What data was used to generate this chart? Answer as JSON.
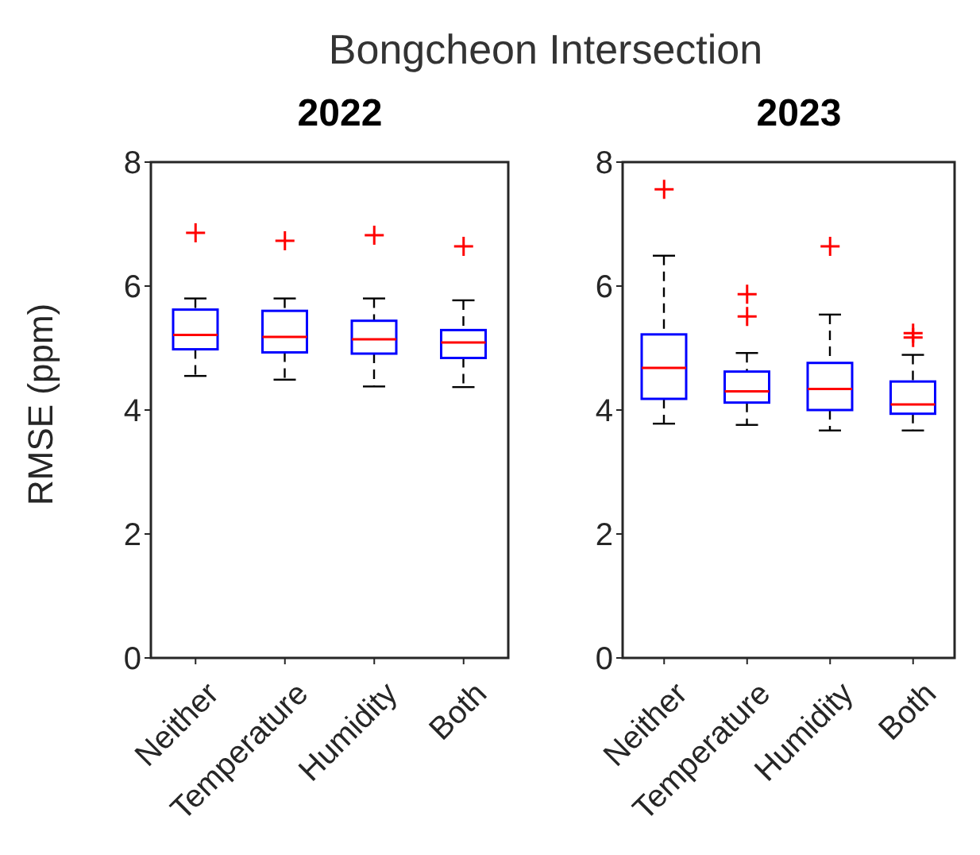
{
  "chart_data": [
    {
      "type": "box",
      "title": "Bongcheon Intersection",
      "subtitle": "2022",
      "ylabel": "RMSE (ppm)",
      "categories": [
        "Neither",
        "Temperature",
        "Humidity",
        "Both"
      ],
      "color": "#0000ff",
      "marker": "cross",
      "line_style": "dashed",
      "grid": false,
      "legend": false,
      "ylim": [
        0,
        8
      ],
      "yticks": [
        0,
        2,
        4,
        6,
        8
      ],
      "boxes": [
        {
          "low": 4.55,
          "q1": 4.98,
          "median": 5.21,
          "q3": 5.62,
          "high": 5.8,
          "outliers": [
            6.86
          ]
        },
        {
          "low": 4.49,
          "q1": 4.93,
          "median": 5.18,
          "q3": 5.6,
          "high": 5.8,
          "outliers": [
            6.73
          ]
        },
        {
          "low": 4.38,
          "q1": 4.91,
          "median": 5.14,
          "q3": 5.44,
          "high": 5.8,
          "outliers": [
            6.82
          ]
        },
        {
          "low": 4.37,
          "q1": 4.84,
          "median": 5.09,
          "q3": 5.29,
          "high": 5.77,
          "outliers": [
            6.64
          ]
        }
      ]
    },
    {
      "type": "box",
      "subtitle": "2023",
      "categories": [
        "Neither",
        "Temperature",
        "Humidity",
        "Both"
      ],
      "color": "#0000ff",
      "marker": "cross",
      "line_style": "dashed",
      "grid": false,
      "legend": false,
      "ylim": [
        0,
        8
      ],
      "yticks": [
        0,
        2,
        4,
        6,
        8
      ],
      "boxes": [
        {
          "low": 3.78,
          "q1": 4.18,
          "median": 4.68,
          "q3": 5.22,
          "high": 6.49,
          "outliers": [
            7.56
          ]
        },
        {
          "low": 3.76,
          "q1": 4.12,
          "median": 4.3,
          "q3": 4.62,
          "high": 4.92,
          "outliers": [
            5.87,
            5.51
          ]
        },
        {
          "low": 3.67,
          "q1": 4.0,
          "median": 4.34,
          "q3": 4.76,
          "high": 5.54,
          "outliers": [
            6.64
          ]
        },
        {
          "low": 3.67,
          "q1": 3.94,
          "median": 4.09,
          "q3": 4.46,
          "high": 4.89,
          "outliers": [
            5.24,
            5.17
          ]
        }
      ]
    }
  ]
}
